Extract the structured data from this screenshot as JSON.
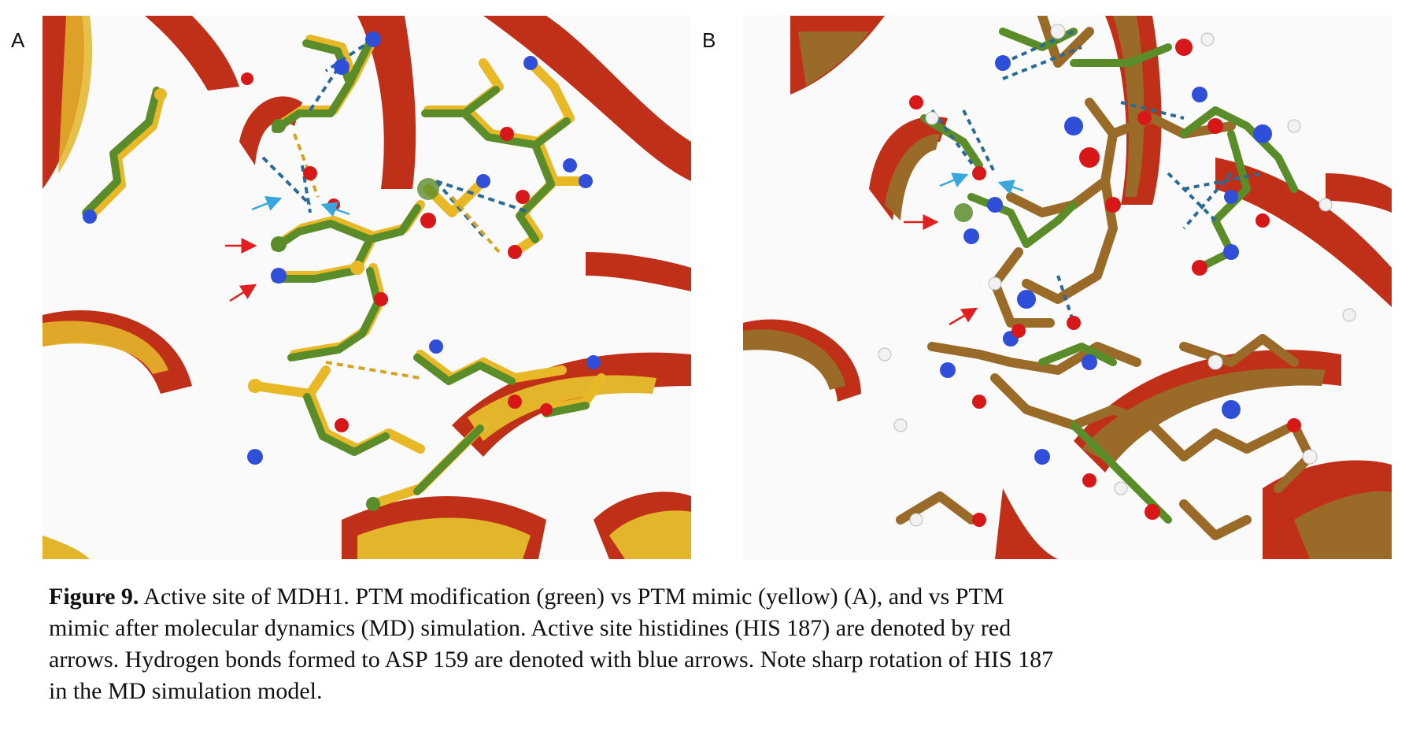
{
  "panels": [
    {
      "label": "A"
    },
    {
      "label": "B"
    }
  ],
  "caption": {
    "label": "Figure 9.",
    "lines": [
      " Active site of MDH1. PTM modification (green) vs PTM mimic (yellow) (A), and vs PTM",
      "mimic after molecular dynamics (MD) simulation. Active site histidines (HIS 187) are denoted by red",
      "arrows. Hydrogen bonds formed to ASP 159 are denoted with blue arrows. Note sharp rotation of HIS 187",
      "in the MD simulation model."
    ]
  },
  "colors": {
    "ptm_modification": "#5a8c2a",
    "ptm_mimic": "#e8b826",
    "md_simulation": "#9a6a28",
    "ribbon": "#c03018",
    "nitrogen": "#2f4fd8",
    "oxygen": "#d81818",
    "hydrogen": "#f2f2f2",
    "his_arrow": "#e02020",
    "hbond_arrow": "#3aa6dc",
    "hbond_line": "#2a6a98"
  }
}
